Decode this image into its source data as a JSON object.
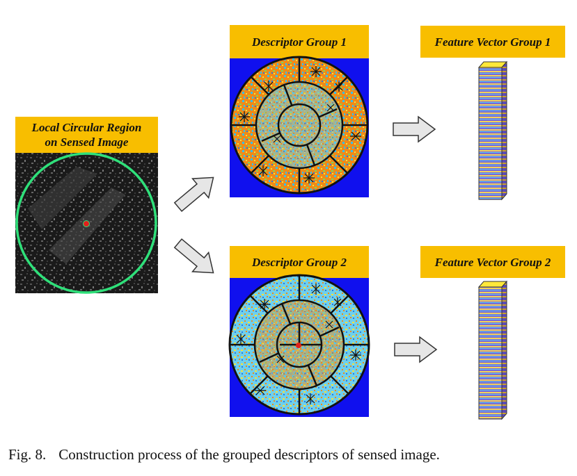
{
  "labels": {
    "source_line1": "Local Circular Region",
    "source_line2": "on Sensed Image",
    "descriptor_group_1": "Descriptor Group 1",
    "descriptor_group_2": "Descriptor Group 2",
    "feature_vector_group_1": "Feature Vector Group 1",
    "feature_vector_group_2": "Feature Vector Group 2"
  },
  "caption": {
    "figure_number": "Fig. 8.",
    "text": "Construction process of the grouped descriptors of sensed image."
  },
  "colors": {
    "label_background": "#f8be00",
    "descriptor_background": "#1010ee",
    "region_circle": "#2fe07a",
    "center_point": "#e0201c",
    "arrow_fill": "#e6e6e6",
    "feature_vector_face": "#8a6fd6",
    "feature_vector_top": "#ffe83a"
  },
  "icons": {
    "arrow": "block-arrow-icon",
    "feature_vector": "bar-column-icon",
    "descriptor": "polar-grid-icon"
  }
}
